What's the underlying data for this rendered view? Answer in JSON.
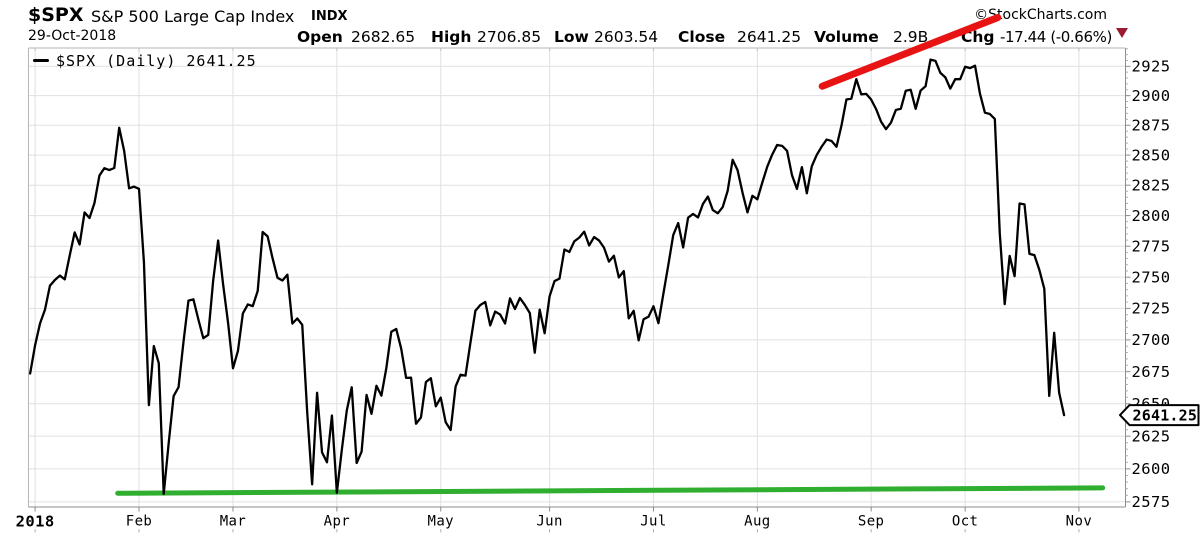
{
  "header": {
    "symbol": "$SPX",
    "index_name": "S&P 500 Large Cap Index",
    "exchange": "INDX",
    "credit": "©StockCharts.com",
    "date": "29-Oct-2018",
    "quote": {
      "open_label": "Open",
      "open": "2682.65",
      "high_label": "High",
      "high": "2706.85",
      "low_label": "Low",
      "low": "2603.54",
      "close_label": "Close",
      "close": "2641.25",
      "volume_label": "Volume",
      "volume": "2.9B",
      "chg_label": "Chg",
      "chg": "-17.44 (-0.66%)",
      "direction": "down"
    }
  },
  "legend": {
    "label": "$SPX (Daily) 2641.25"
  },
  "colors": {
    "line": "#000000",
    "grid": "#e0e0e0",
    "frame": "#b6b6b6",
    "axis": "#8c8c8c",
    "annotation_red": "#e81414",
    "annotation_green": "#2fae2f",
    "down_triangle": "#9b1b30",
    "credit": "#757575"
  },
  "chart_data": {
    "type": "line",
    "title": "$SPX (Daily)",
    "last_close": 2641.25,
    "x_unit": "trading-day",
    "first_point_index": -1,
    "dates": [
      "2017-12-29",
      "2018-01-02",
      "2018-01-03",
      "2018-01-04",
      "2018-01-05",
      "2018-01-08",
      "2018-01-09",
      "2018-01-10",
      "2018-01-11",
      "2018-01-12",
      "2018-01-16",
      "2018-01-17",
      "2018-01-18",
      "2018-01-19",
      "2018-01-22",
      "2018-01-23",
      "2018-01-24",
      "2018-01-25",
      "2018-01-26",
      "2018-01-29",
      "2018-01-30",
      "2018-01-31",
      "2018-02-01",
      "2018-02-02",
      "2018-02-05",
      "2018-02-06",
      "2018-02-07",
      "2018-02-08",
      "2018-02-09",
      "2018-02-12",
      "2018-02-13",
      "2018-02-14",
      "2018-02-15",
      "2018-02-16",
      "2018-02-20",
      "2018-02-21",
      "2018-02-22",
      "2018-02-23",
      "2018-02-26",
      "2018-02-27",
      "2018-02-28",
      "2018-03-01",
      "2018-03-02",
      "2018-03-05",
      "2018-03-06",
      "2018-03-07",
      "2018-03-08",
      "2018-03-09",
      "2018-03-12",
      "2018-03-13",
      "2018-03-14",
      "2018-03-15",
      "2018-03-16",
      "2018-03-19",
      "2018-03-20",
      "2018-03-21",
      "2018-03-22",
      "2018-03-23",
      "2018-03-26",
      "2018-03-27",
      "2018-03-28",
      "2018-03-29",
      "2018-04-02",
      "2018-04-03",
      "2018-04-04",
      "2018-04-05",
      "2018-04-06",
      "2018-04-09",
      "2018-04-10",
      "2018-04-11",
      "2018-04-12",
      "2018-04-13",
      "2018-04-16",
      "2018-04-17",
      "2018-04-18",
      "2018-04-19",
      "2018-04-20",
      "2018-04-23",
      "2018-04-24",
      "2018-04-25",
      "2018-04-26",
      "2018-04-27",
      "2018-04-30",
      "2018-05-01",
      "2018-05-02",
      "2018-05-03",
      "2018-05-04",
      "2018-05-07",
      "2018-05-08",
      "2018-05-09",
      "2018-05-10",
      "2018-05-11",
      "2018-05-14",
      "2018-05-15",
      "2018-05-16",
      "2018-05-17",
      "2018-05-18",
      "2018-05-21",
      "2018-05-22",
      "2018-05-23",
      "2018-05-24",
      "2018-05-25",
      "2018-05-29",
      "2018-05-30",
      "2018-05-31",
      "2018-06-01",
      "2018-06-04",
      "2018-06-05",
      "2018-06-06",
      "2018-06-07",
      "2018-06-08",
      "2018-06-11",
      "2018-06-12",
      "2018-06-13",
      "2018-06-14",
      "2018-06-15",
      "2018-06-18",
      "2018-06-19",
      "2018-06-20",
      "2018-06-21",
      "2018-06-22",
      "2018-06-25",
      "2018-06-26",
      "2018-06-27",
      "2018-06-28",
      "2018-06-29",
      "2018-07-02",
      "2018-07-03",
      "2018-07-05",
      "2018-07-06",
      "2018-07-09",
      "2018-07-10",
      "2018-07-11",
      "2018-07-12",
      "2018-07-13",
      "2018-07-16",
      "2018-07-17",
      "2018-07-18",
      "2018-07-19",
      "2018-07-20",
      "2018-07-23",
      "2018-07-24",
      "2018-07-25",
      "2018-07-26",
      "2018-07-27",
      "2018-07-30",
      "2018-07-31",
      "2018-08-01",
      "2018-08-02",
      "2018-08-03",
      "2018-08-06",
      "2018-08-07",
      "2018-08-08",
      "2018-08-09",
      "2018-08-10",
      "2018-08-13",
      "2018-08-14",
      "2018-08-15",
      "2018-08-16",
      "2018-08-17",
      "2018-08-20",
      "2018-08-21",
      "2018-08-22",
      "2018-08-23",
      "2018-08-24",
      "2018-08-27",
      "2018-08-28",
      "2018-08-29",
      "2018-08-30",
      "2018-08-31",
      "2018-09-04",
      "2018-09-05",
      "2018-09-06",
      "2018-09-07",
      "2018-09-10",
      "2018-09-11",
      "2018-09-12",
      "2018-09-13",
      "2018-09-14",
      "2018-09-17",
      "2018-09-18",
      "2018-09-19",
      "2018-09-20",
      "2018-09-21",
      "2018-09-24",
      "2018-09-25",
      "2018-09-26",
      "2018-09-27",
      "2018-09-28",
      "2018-10-01",
      "2018-10-02",
      "2018-10-03",
      "2018-10-04",
      "2018-10-05",
      "2018-10-08",
      "2018-10-09",
      "2018-10-10",
      "2018-10-11",
      "2018-10-12",
      "2018-10-15",
      "2018-10-16",
      "2018-10-17",
      "2018-10-18",
      "2018-10-19",
      "2018-10-22",
      "2018-10-23",
      "2018-10-24",
      "2018-10-25",
      "2018-10-26",
      "2018-10-29"
    ],
    "closes": [
      2673.61,
      2695.81,
      2713.06,
      2723.99,
      2743.15,
      2747.71,
      2751.29,
      2748.23,
      2767.56,
      2786.24,
      2776.42,
      2802.56,
      2798.03,
      2810.3,
      2832.97,
      2839.13,
      2837.54,
      2839.25,
      2872.87,
      2853.53,
      2822.43,
      2823.81,
      2821.98,
      2762.13,
      2648.94,
      2695.14,
      2681.66,
      2581.0,
      2619.55,
      2656.0,
      2662.94,
      2698.63,
      2731.2,
      2732.22,
      2716.26,
      2701.33,
      2703.96,
      2747.3,
      2779.6,
      2744.28,
      2713.83,
      2677.67,
      2691.25,
      2720.94,
      2728.12,
      2726.8,
      2738.97,
      2786.57,
      2783.02,
      2765.31,
      2749.48,
      2747.33,
      2752.01,
      2712.92,
      2716.94,
      2711.93,
      2643.69,
      2588.26,
      2658.55,
      2612.62,
      2605.0,
      2640.87,
      2581.88,
      2614.45,
      2644.69,
      2662.84,
      2604.47,
      2613.16,
      2656.87,
      2642.19,
      2663.99,
      2656.3,
      2677.84,
      2706.39,
      2708.64,
      2693.13,
      2670.14,
      2670.29,
      2634.56,
      2639.4,
      2666.94,
      2669.91,
      2648.05,
      2654.8,
      2635.67,
      2629.73,
      2663.42,
      2672.63,
      2671.92,
      2697.79,
      2723.07,
      2727.72,
      2730.13,
      2711.45,
      2722.46,
      2720.13,
      2712.97,
      2733.01,
      2724.44,
      2733.29,
      2727.76,
      2721.33,
      2689.86,
      2724.01,
      2705.27,
      2734.62,
      2746.87,
      2748.8,
      2772.35,
      2770.37,
      2779.03,
      2782.0,
      2786.85,
      2775.63,
      2782.49,
      2779.66,
      2773.87,
      2762.57,
      2767.32,
      2749.76,
      2754.88,
      2717.07,
      2723.06,
      2699.63,
      2716.31,
      2718.37,
      2726.71,
      2713.22,
      2736.61,
      2759.82,
      2784.17,
      2793.84,
      2774.02,
      2798.29,
      2801.31,
      2798.43,
      2809.55,
      2815.62,
      2804.49,
      2801.83,
      2806.98,
      2820.4,
      2846.07,
      2837.44,
      2818.82,
      2802.6,
      2816.29,
      2813.36,
      2827.22,
      2840.35,
      2850.4,
      2858.45,
      2857.7,
      2853.58,
      2833.28,
      2821.93,
      2839.96,
      2818.37,
      2840.69,
      2850.13,
      2857.05,
      2862.96,
      2861.82,
      2856.98,
      2874.69,
      2896.74,
      2897.52,
      2914.04,
      2901.13,
      2901.52,
      2896.72,
      2888.6,
      2878.05,
      2871.68,
      2877.13,
      2887.89,
      2888.92,
      2904.18,
      2904.98,
      2888.8,
      2904.31,
      2907.95,
      2930.75,
      2929.67,
      2919.37,
      2915.56,
      2905.97,
      2914.0,
      2913.98,
      2924.59,
      2923.43,
      2925.51,
      2901.61,
      2885.57,
      2884.43,
      2880.34,
      2785.68,
      2728.37,
      2767.13,
      2750.79,
      2809.92,
      2809.21,
      2768.78,
      2767.78,
      2755.88,
      2740.69,
      2656.1,
      2705.57,
      2658.69,
      2641.25
    ],
    "ylim": [
      2571,
      2941
    ],
    "y_ticks": [
      2575,
      2600,
      2625,
      2650,
      2675,
      2700,
      2725,
      2750,
      2775,
      2800,
      2825,
      2850,
      2875,
      2900,
      2925
    ],
    "y_minor_step": 5,
    "x_ticks": [
      {
        "label": "2018",
        "day": 0,
        "bold": true
      },
      {
        "label": "Feb",
        "day": 21,
        "bold": false
      },
      {
        "label": "Mar",
        "day": 40,
        "bold": false
      },
      {
        "label": "Apr",
        "day": 61,
        "bold": false
      },
      {
        "label": "May",
        "day": 82,
        "bold": false
      },
      {
        "label": "Jun",
        "day": 104,
        "bold": false
      },
      {
        "label": "Jul",
        "day": 125,
        "bold": false
      },
      {
        "label": "Aug",
        "day": 146,
        "bold": false
      },
      {
        "label": "Sep",
        "day": 169,
        "bold": false
      },
      {
        "label": "Oct",
        "day": 188,
        "bold": false
      },
      {
        "label": "Nov",
        "day": 211,
        "bold": false
      }
    ],
    "annotations": {
      "support_line": {
        "type": "trendline",
        "color_key": "annotation_green",
        "x1_day": 16.7,
        "price1": 2581.5,
        "x2_day": 215.8,
        "price2": 2585.6,
        "width": 5
      },
      "resistance_line": {
        "type": "trendline",
        "color_key": "annotation_red",
        "x1_day": 159.1,
        "price1": 2908.0,
        "x2_day": 194.6,
        "price2": 2967.0,
        "width": 7
      }
    },
    "last_price_label": {
      "text": "2641.25",
      "price": 2641.25
    },
    "legend_entries": [
      "$SPX (Daily) 2641.25"
    ],
    "grid": true,
    "y_scale": "log",
    "legend_position": "top-left"
  }
}
